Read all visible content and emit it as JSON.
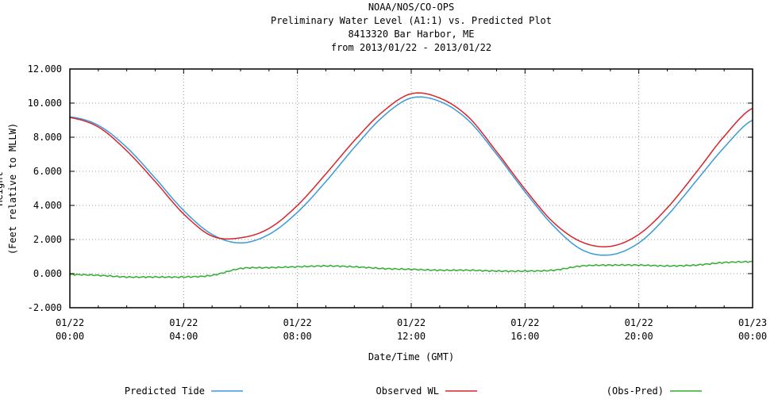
{
  "chart_data": {
    "type": "line",
    "title_lines": [
      "NOAA/NOS/CO-OPS",
      "Preliminary  Water Level (A1:1) vs. Predicted Plot",
      "8413320 Bar Harbor, ME",
      "from 2013/01/22 - 2013/01/22"
    ],
    "xlabel": "Date/Time (GMT)",
    "ylabel_lines": [
      "Height",
      "(Feet relative to MLLW)"
    ],
    "ylim": [
      -2,
      12
    ],
    "yticks": [
      -2,
      0,
      2,
      4,
      6,
      8,
      10,
      12
    ],
    "ytick_labels": [
      "-2.000",
      "0.000",
      "2.000",
      "4.000",
      "6.000",
      "8.000",
      "10.000",
      "12.000"
    ],
    "xlim_hours": [
      0,
      24
    ],
    "xticks_hours": [
      0,
      4,
      8,
      12,
      16,
      20,
      24
    ],
    "xtick_labels": [
      [
        "01/22",
        "00:00"
      ],
      [
        "01/22",
        "04:00"
      ],
      [
        "01/22",
        "08:00"
      ],
      [
        "01/22",
        "12:00"
      ],
      [
        "01/22",
        "16:00"
      ],
      [
        "01/22",
        "20:00"
      ],
      [
        "01/23",
        "00:00"
      ]
    ],
    "grid": true,
    "legend_placement": "bottom",
    "x_hours": [
      0,
      1,
      2,
      3,
      4,
      5,
      6,
      7,
      8,
      9,
      10,
      11,
      12,
      13,
      14,
      15,
      16,
      17,
      18,
      19,
      20,
      21,
      22,
      23,
      24
    ],
    "series": [
      {
        "name": "Predicted Tide",
        "color": "#3a9ad9",
        "values": [
          9.2,
          8.7,
          7.4,
          5.6,
          3.7,
          2.3,
          1.8,
          2.3,
          3.6,
          5.4,
          7.4,
          9.2,
          10.3,
          10.1,
          9.0,
          7.0,
          4.8,
          2.8,
          1.4,
          1.1,
          1.8,
          3.4,
          5.4,
          7.4,
          9.0
        ]
      },
      {
        "name": "Observed WL",
        "color": "#d9252b",
        "values": [
          9.15,
          8.6,
          7.2,
          5.4,
          3.5,
          2.2,
          2.1,
          2.65,
          4.0,
          5.85,
          7.8,
          9.5,
          10.55,
          10.3,
          9.2,
          7.15,
          4.95,
          3.0,
          1.85,
          1.6,
          2.3,
          3.85,
          5.9,
          8.05,
          9.7
        ]
      },
      {
        "name": "(Obs-Pred)",
        "color": "#2fae2f",
        "values": [
          -0.05,
          -0.1,
          -0.2,
          -0.2,
          -0.2,
          -0.1,
          0.3,
          0.35,
          0.4,
          0.45,
          0.4,
          0.3,
          0.25,
          0.2,
          0.2,
          0.15,
          0.15,
          0.2,
          0.45,
          0.5,
          0.5,
          0.45,
          0.5,
          0.65,
          0.7
        ]
      }
    ]
  }
}
